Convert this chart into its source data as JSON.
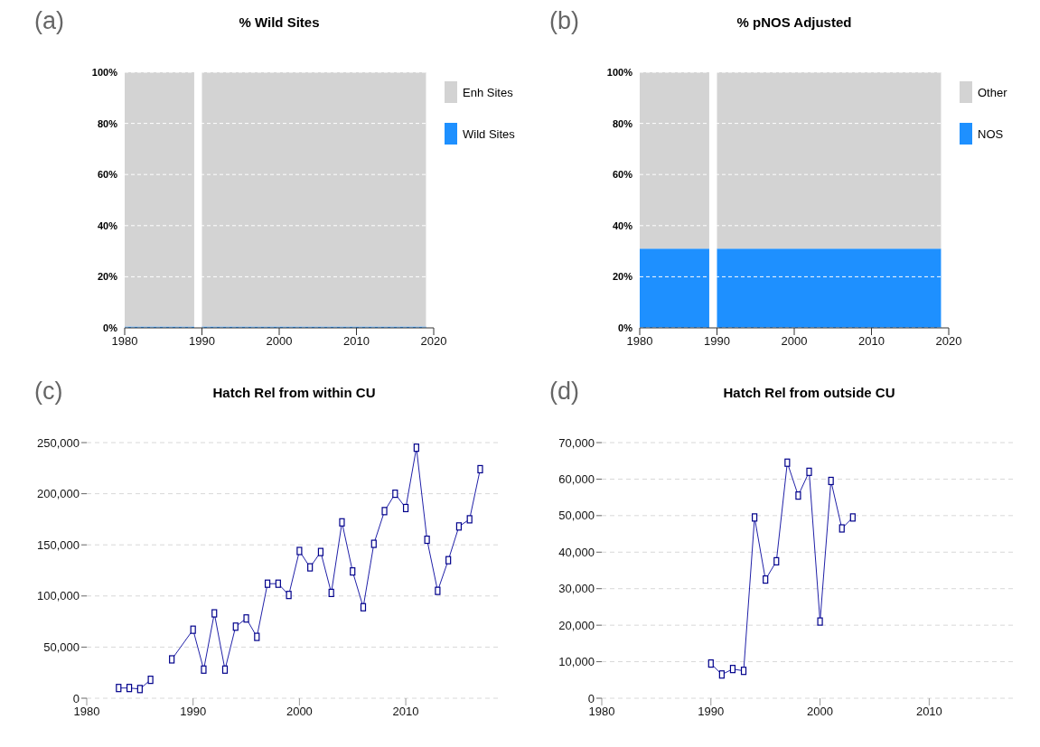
{
  "chart_data": [
    {
      "type": "area",
      "title": "% Wild Sites",
      "annotations": [
        "(a)"
      ],
      "stacked": true,
      "legend": "right",
      "grid": "y",
      "x": [
        1980,
        1989,
        1989.5,
        1990,
        2019
      ],
      "series": [
        {
          "name": "Wild Sites",
          "color": "#1e90ff",
          "values": [
            0.5,
            0.5,
            null,
            0.5,
            0.5
          ]
        },
        {
          "name": "Enh Sites",
          "color": "#d3d3d3",
          "values": [
            99.5,
            99.5,
            null,
            99.5,
            99.5
          ]
        }
      ],
      "xlim": [
        1980,
        2020
      ],
      "xticks": [
        1980,
        1990,
        2000,
        2010,
        2020
      ],
      "ylim": [
        0,
        100
      ],
      "yticks": [
        {
          "value": 0,
          "label": "0%"
        },
        {
          "value": 20,
          "label": "20%"
        },
        {
          "value": 40,
          "label": "40%"
        },
        {
          "value": 60,
          "label": "60%"
        },
        {
          "value": 80,
          "label": "80%"
        },
        {
          "value": 100,
          "label": "100%"
        }
      ]
    },
    {
      "type": "area",
      "title": "% pNOS Adjusted",
      "annotations": [
        "(b)"
      ],
      "stacked": true,
      "legend": "right",
      "grid": "y",
      "x": [
        1980,
        1989,
        1989.5,
        1990,
        2019
      ],
      "series": [
        {
          "name": "NOS",
          "color": "#1e90ff",
          "values": [
            31,
            31,
            null,
            31,
            31
          ]
        },
        {
          "name": "Other",
          "color": "#d3d3d3",
          "values": [
            69,
            69,
            null,
            69,
            69
          ]
        }
      ],
      "xlim": [
        1980,
        2020
      ],
      "xticks": [
        1980,
        1990,
        2000,
        2010,
        2020
      ],
      "ylim": [
        0,
        100
      ],
      "yticks": [
        {
          "value": 0,
          "label": "0%"
        },
        {
          "value": 20,
          "label": "20%"
        },
        {
          "value": 40,
          "label": "40%"
        },
        {
          "value": 60,
          "label": "60%"
        },
        {
          "value": 80,
          "label": "80%"
        },
        {
          "value": 100,
          "label": "100%"
        }
      ]
    },
    {
      "type": "line",
      "title": "Hatch Rel from within CU",
      "annotations": [
        "(c)"
      ],
      "marker": "square",
      "grid": "y",
      "x": [
        1983,
        1984,
        1985,
        1986,
        1987,
        1988,
        1990,
        1991,
        1992,
        1993,
        1994,
        1995,
        1996,
        1997,
        1998,
        1999,
        2000,
        2001,
        2002,
        2003,
        2004,
        2005,
        2006,
        2007,
        2008,
        2009,
        2010,
        2011,
        2012,
        2013,
        2014,
        2015,
        2016,
        2017
      ],
      "series": [
        {
          "color": "#2020a8",
          "values": [
            10000,
            10000,
            9000,
            18000,
            null,
            38000,
            67000,
            28000,
            83000,
            28000,
            70000,
            78000,
            60000,
            112000,
            112000,
            101000,
            144000,
            128000,
            143000,
            103000,
            172000,
            124000,
            89000,
            151000,
            183000,
            200000,
            186000,
            245000,
            155000,
            105000,
            135000,
            168000,
            175000,
            224000
          ]
        }
      ],
      "xlim": [
        1980,
        2019
      ],
      "xticks": [
        1980,
        1990,
        2000,
        2010
      ],
      "ylim": [
        0,
        250000
      ],
      "yticks": [
        {
          "value": 0,
          "label": "0"
        },
        {
          "value": 50000,
          "label": "50,000"
        },
        {
          "value": 100000,
          "label": "100,000"
        },
        {
          "value": 150000,
          "label": "150,000"
        },
        {
          "value": 200000,
          "label": "200,000"
        },
        {
          "value": 250000,
          "label": "250,000"
        }
      ]
    },
    {
      "type": "line",
      "title": "Hatch Rel from outside CU",
      "annotations": [
        "(d)"
      ],
      "marker": "square",
      "grid": "y",
      "x": [
        1990,
        1991,
        1992,
        1993,
        1994,
        1995,
        1996,
        1997,
        1998,
        1999,
        2000,
        2001,
        2002,
        2003
      ],
      "series": [
        {
          "color": "#2020a8",
          "values": [
            9500,
            6500,
            8000,
            7500,
            49500,
            32500,
            37500,
            64500,
            55500,
            62000,
            21000,
            59500,
            46500,
            49500
          ]
        }
      ],
      "xlim": [
        1980,
        2018
      ],
      "xticks": [
        1980,
        1990,
        2000,
        2010
      ],
      "ylim": [
        0,
        70000
      ],
      "yticks": [
        {
          "value": 0,
          "label": "0"
        },
        {
          "value": 10000,
          "label": "10,000"
        },
        {
          "value": 20000,
          "label": "20,000"
        },
        {
          "value": 30000,
          "label": "30,000"
        },
        {
          "value": 40000,
          "label": "40,000"
        },
        {
          "value": 50000,
          "label": "50,000"
        },
        {
          "value": 60000,
          "label": "60,000"
        },
        {
          "value": 70000,
          "label": "70,000"
        }
      ]
    }
  ]
}
